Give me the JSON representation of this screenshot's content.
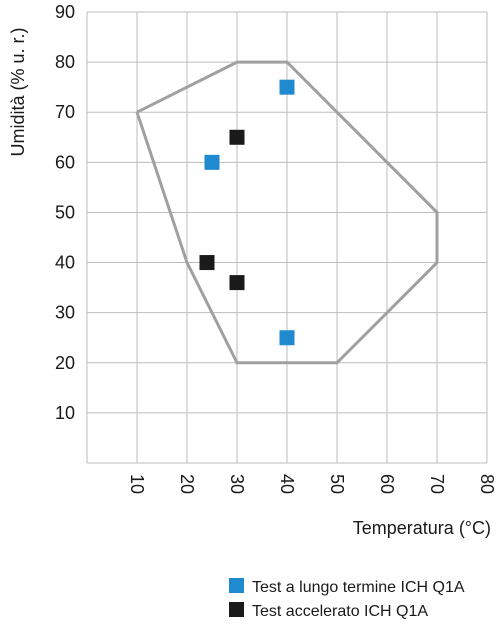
{
  "chart_data": {
    "type": "scatter",
    "xlabel": "Temperatura (°C)",
    "ylabel": "Umidità (% u. r.)",
    "xlim": [
      0,
      80
    ],
    "ylim": [
      0,
      90
    ],
    "x_ticks": [
      "10",
      "20",
      "30",
      "40",
      "50",
      "60",
      "70",
      "80"
    ],
    "y_ticks": [
      "10",
      "20",
      "30",
      "40",
      "50",
      "60",
      "70",
      "80",
      "90"
    ],
    "grid": true,
    "legend_position": "bottom-right",
    "region": {
      "color": "#a0a0a0",
      "points": [
        [
          10,
          70
        ],
        [
          30,
          80
        ],
        [
          40,
          80
        ],
        [
          70,
          50
        ],
        [
          70,
          40
        ],
        [
          50,
          20
        ],
        [
          30,
          20
        ],
        [
          20,
          40
        ],
        [
          10,
          70
        ]
      ]
    },
    "series": [
      {
        "name": "Test a lungo termine ICH Q1A",
        "color": "#1f8ad0",
        "points": [
          [
            40,
            75
          ],
          [
            25,
            60
          ],
          [
            40,
            25
          ]
        ]
      },
      {
        "name": "Test accelerato ICH Q1A",
        "color": "#1a1a1a",
        "points": [
          [
            30,
            65
          ],
          [
            24,
            40
          ],
          [
            30,
            36
          ]
        ]
      }
    ]
  }
}
